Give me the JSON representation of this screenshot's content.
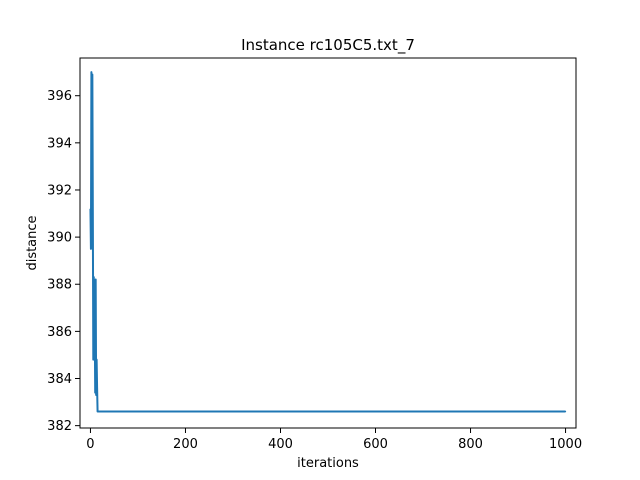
{
  "chart_data": {
    "type": "line",
    "title": "Instance rc105C5.txt_7",
    "xlabel": "iterations",
    "ylabel": "distance",
    "xlim": [
      -22,
      1022
    ],
    "ylim": [
      381.9,
      397.6
    ],
    "xticks": [
      0,
      200,
      400,
      600,
      800,
      1000
    ],
    "yticks": [
      382,
      384,
      386,
      388,
      390,
      392,
      394,
      396
    ],
    "grid": false,
    "line_color": "#1f77b4",
    "series": [
      {
        "x": [
          0,
          1,
          2,
          3,
          4,
          5,
          6,
          7,
          8,
          9,
          10,
          11,
          12,
          13,
          14,
          15,
          1000
        ],
        "y": [
          391.2,
          389.5,
          397.0,
          390.0,
          396.9,
          391.0,
          384.8,
          388.3,
          385.0,
          386.5,
          383.4,
          388.2,
          383.3,
          384.8,
          383.6,
          382.6,
          382.6
        ]
      }
    ]
  }
}
